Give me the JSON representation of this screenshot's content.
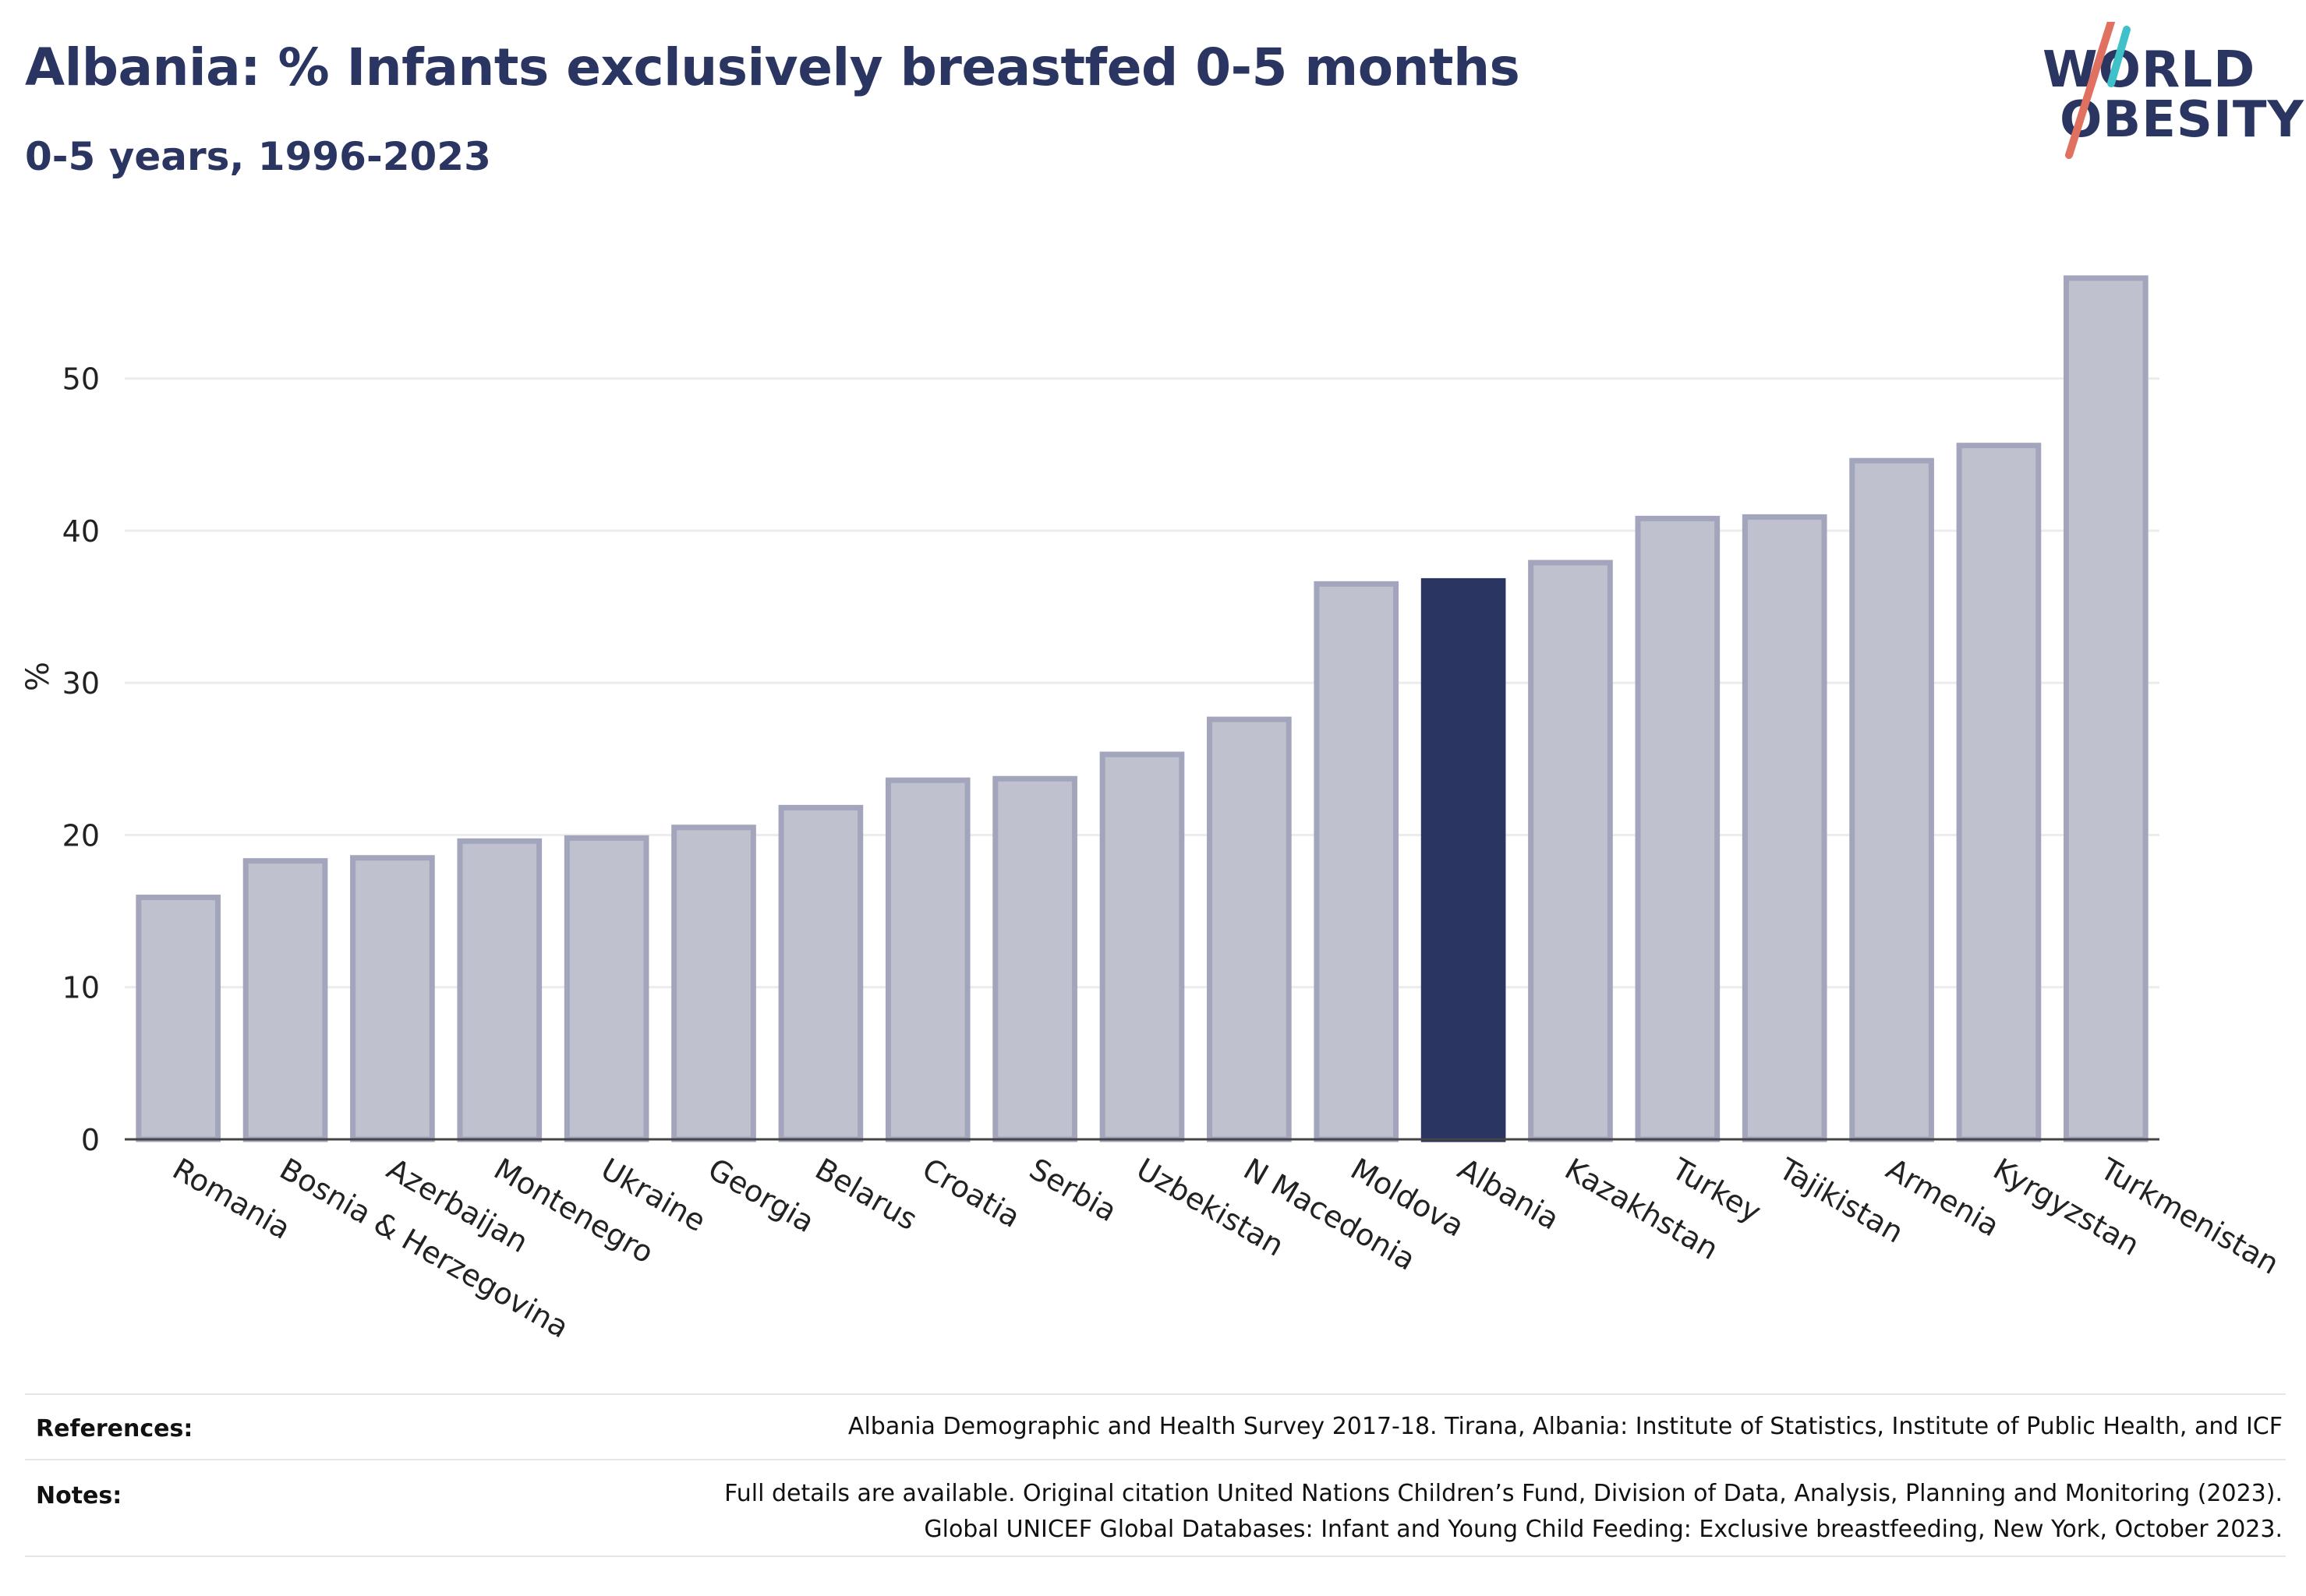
{
  "header": {
    "title": "Albania: % Infants exclusively breastfed 0-5 months",
    "subtitle": "0-5 years, 1996-2023"
  },
  "logo": {
    "line1": "WORLD",
    "line2": "OBESITY"
  },
  "colors": {
    "highlight": "#2b3561",
    "bar_fill": "#bfc1ce",
    "bar_stroke": "#a2a5bb",
    "grid": "#ececec"
  },
  "chart_data": {
    "type": "bar",
    "ylabel": "%",
    "ylim": [
      0,
      59
    ],
    "yticks": [
      0,
      10,
      20,
      30,
      40,
      50
    ],
    "highlight": "Albania",
    "categories": [
      "Romania",
      "Bosnia & Herzegovina",
      "Azerbaijan",
      "Montenegro",
      "Ukraine",
      "Georgia",
      "Belarus",
      "Croatia",
      "Serbia",
      "Uzbekistan",
      "N Macedonia",
      "Moldova",
      "Albania",
      "Kazakhstan",
      "Turkey",
      "Tajikistan",
      "Armenia",
      "Kyrgyzstan",
      "Turkmenistan"
    ],
    "values": [
      15.9,
      18.3,
      18.5,
      19.6,
      19.8,
      20.5,
      21.8,
      23.6,
      23.7,
      25.3,
      27.6,
      36.5,
      36.7,
      37.9,
      40.8,
      40.9,
      44.6,
      45.6,
      56.6
    ]
  },
  "footer": {
    "references_label": "References:",
    "references_text": "Albania Demographic and Health Survey 2017-18. Tirana, Albania: Institute of Statistics, Institute of Public Health, and ICF",
    "notes_label": "Notes:",
    "notes_line1": "Full details are available. Original citation United Nations Children’s Fund, Division of Data, Analysis, Planning and Monitoring (2023).",
    "notes_line2": "Global UNICEF Global Databases: Infant and Young Child Feeding: Exclusive breastfeeding, New York, October 2023."
  }
}
